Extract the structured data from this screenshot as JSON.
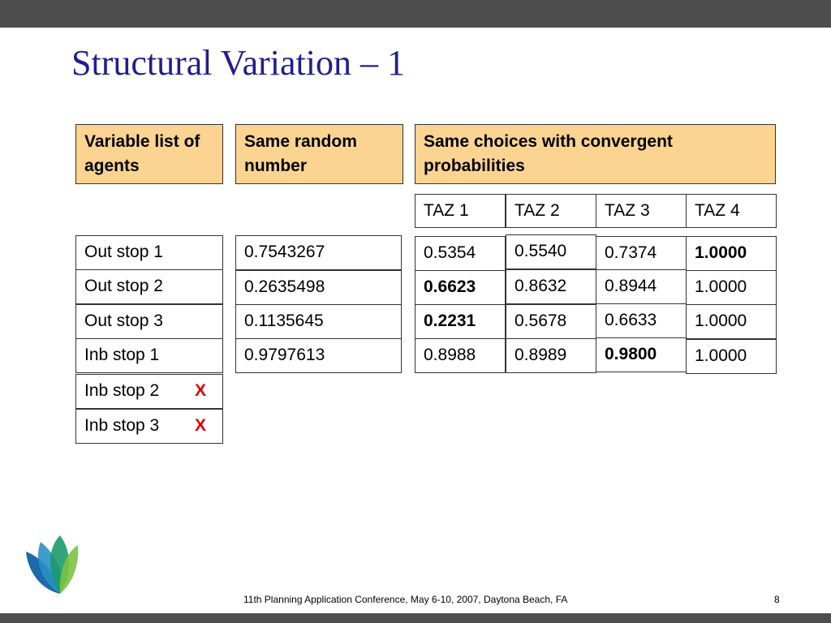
{
  "title": "Structural Variation – 1",
  "headers": {
    "agents": "Variable list of agents",
    "random": "Same random number",
    "choices": "Same choices with convergent probabilities"
  },
  "taz": [
    "TAZ 1",
    "TAZ 2",
    "TAZ 3",
    "TAZ 4"
  ],
  "agents": [
    "Out stop 1",
    "Out stop 2",
    "Out stop 3",
    "Inb stop 1",
    "Inb stop 2",
    "Inb stop 3"
  ],
  "removed_marker": "X",
  "random_numbers": [
    "0.7543267",
    "0.2635498",
    "0.1135645",
    "0.9797613"
  ],
  "probabilities": [
    [
      "0.5354",
      "0.5540",
      "0.7374",
      "1.0000"
    ],
    [
      "0.6623",
      "0.8632",
      "0.8944",
      "1.0000"
    ],
    [
      "0.2231",
      "0.5678",
      "0.6633",
      "1.0000"
    ],
    [
      "0.8988",
      "0.8989",
      "0.9800",
      "1.0000"
    ]
  ],
  "footer": "11th Planning Application Conference, May 6-10, 2007, Daytona Beach, FA",
  "page_number": "8",
  "colors": {
    "header_fill": "#fcd492",
    "title": "#1f1f8f",
    "removed": "#e00000",
    "bar": "#4d4d4d"
  }
}
